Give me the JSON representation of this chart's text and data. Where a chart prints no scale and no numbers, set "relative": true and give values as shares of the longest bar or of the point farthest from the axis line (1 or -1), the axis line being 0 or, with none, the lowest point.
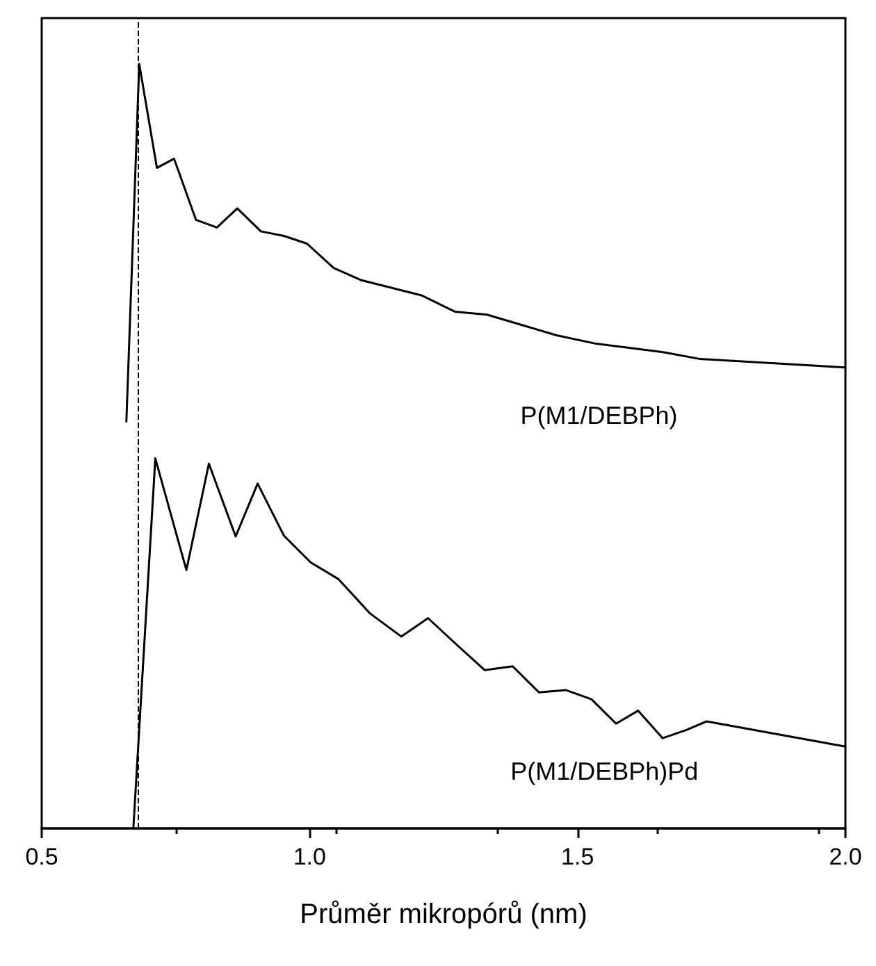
{
  "chart_data": {
    "type": "line",
    "xlabel": "Průměr mikropórů (nm)",
    "relative": true,
    "xlim": [
      0.5,
      2.0
    ],
    "xticks": [
      {
        "value": 0.5,
        "label": "0.5"
      },
      {
        "value": 1,
        "label": "1.0"
      },
      {
        "value": 1.5,
        "label": "1.5"
      },
      {
        "value": 2,
        "label": "2.0"
      }
    ],
    "tick_labels": "x",
    "grid": false,
    "legend": false,
    "marker": "none",
    "line_style": "solid",
    "series": [
      {
        "name": "P(M1/DEBPh)",
        "color": "#000000",
        "x": [
          0.658,
          0.682,
          0.715,
          0.747,
          0.788,
          0.827,
          0.865,
          0.909,
          0.952,
          0.995,
          1.045,
          1.097,
          1.21,
          1.271,
          1.331,
          1.461,
          1.535,
          1.66,
          1.729,
          2.0
        ],
        "values": [
          0.532,
          1.0,
          0.864,
          0.876,
          0.796,
          0.786,
          0.811,
          0.781,
          0.775,
          0.765,
          0.733,
          0.717,
          0.697,
          0.676,
          0.672,
          0.645,
          0.634,
          0.623,
          0.614,
          0.603
        ]
      },
      {
        "name": "P(M1/DEBPh)Pd",
        "color": "#000000",
        "x": [
          0.671,
          0.712,
          0.77,
          0.812,
          0.862,
          0.903,
          0.952,
          1.002,
          1.054,
          1.113,
          1.171,
          1.221,
          1.275,
          1.327,
          1.379,
          1.428,
          1.478,
          1.526,
          1.572,
          1.613,
          1.659,
          1.704,
          1.741,
          2.0
        ],
        "values": [
          0.0,
          0.484,
          0.338,
          0.477,
          0.382,
          0.451,
          0.383,
          0.348,
          0.326,
          0.281,
          0.251,
          0.275,
          0.24,
          0.207,
          0.212,
          0.178,
          0.181,
          0.169,
          0.137,
          0.154,
          0.118,
          0.129,
          0.14,
          0.107
        ]
      }
    ],
    "ref_lines": [
      {
        "axis": "x",
        "value": 0.682,
        "color": "#000000",
        "line_style": "dashed"
      }
    ]
  }
}
